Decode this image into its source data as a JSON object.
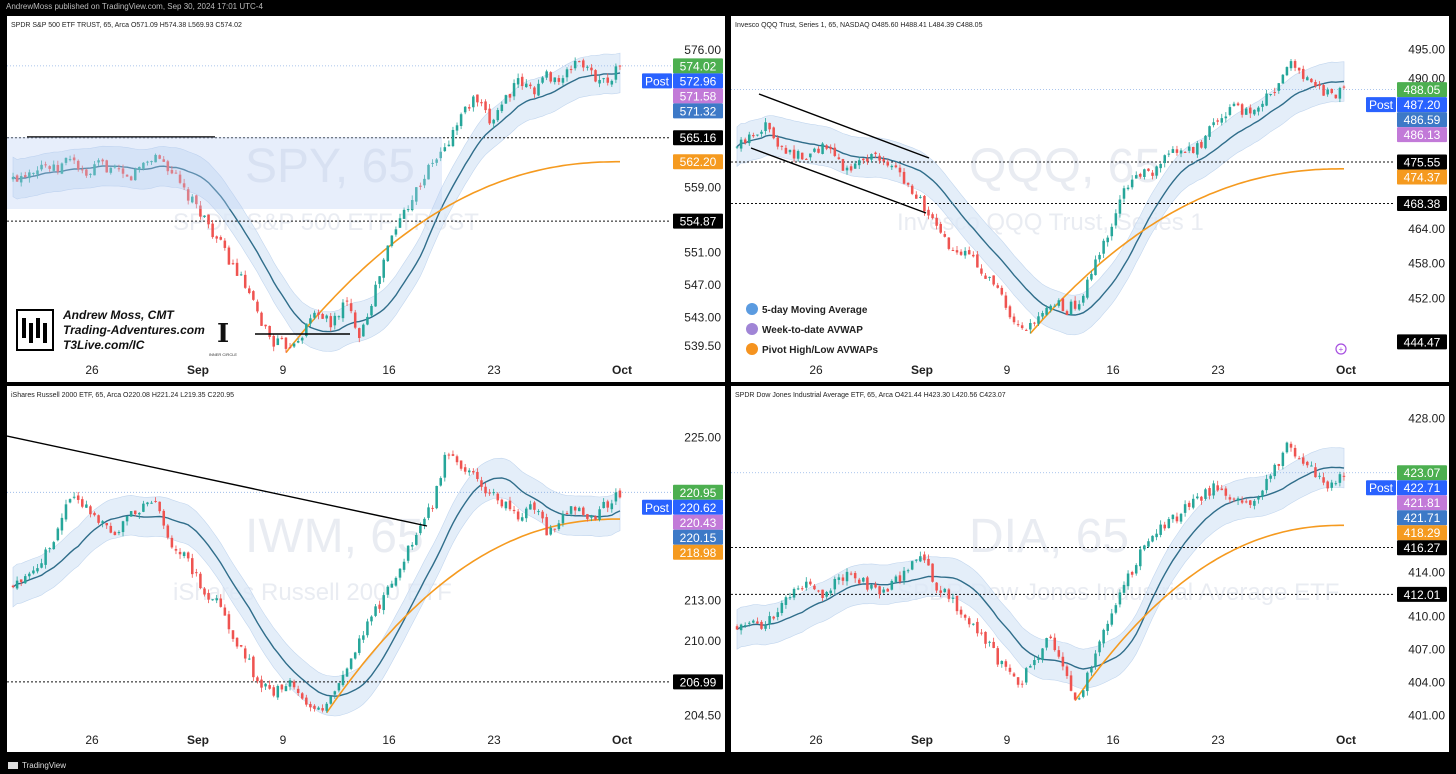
{
  "header_text": "AndrewMoss published on TradingView.com, Sep 30, 2024 17:01 UTC-4",
  "footer_brand": "TradingView",
  "colors": {
    "up": "#26a69a",
    "down": "#ef5350",
    "ma": "#2f6d8a",
    "avwap": "#f59a1f",
    "band": "#dbe8f7",
    "last": "#4caf50",
    "post": "#2962ff",
    "wtd": "#c27ad8",
    "five": "#3d79c7"
  },
  "legend": [
    {
      "label": "5-day Moving Average",
      "color": "#5b9be0"
    },
    {
      "label": "Week-to-date AVWAP",
      "color": "#a085d6"
    },
    {
      "label": "Pivot High/Low AVWAPs",
      "color": "#f5931f"
    }
  ],
  "signature": {
    "name": "Andrew Moss, CMT",
    "site1": "Trading-Adventures.com",
    "site2": "T3Live.com/IC",
    "badge": "INNER CIRCLE"
  },
  "chart_data": [
    {
      "type": "candlestick",
      "symbol": "SPY",
      "title": "SPDR S&P 500 ETF TRUST, 65, Arca",
      "ohlc_text": "O571.09  H574.38  L569.93  C574.02",
      "watermark_ticker": "SPY, 65",
      "watermark_name": "SPDR S&P 500 ETF TRUST",
      "ylim": [
        537.5,
        578.2
      ],
      "y_ticks": [
        "576.00",
        "559.00",
        "551.00",
        "547.00",
        "543.00",
        "539.50"
      ],
      "x_labels": [
        "26",
        "Sep",
        "9",
        "16",
        "23",
        "Oct"
      ],
      "price_labels": [
        {
          "text": "574.02",
          "value": 574.02,
          "kind": "last"
        },
        {
          "text": "572.96",
          "value": 572.96,
          "kind": "post",
          "tag": "Post"
        },
        {
          "text": "571.58",
          "value": 571.58,
          "kind": "wtd"
        },
        {
          "text": "571.32",
          "value": 571.32,
          "kind": "five"
        },
        {
          "text": "565.16",
          "value": 565.16,
          "kind": "level"
        },
        {
          "text": "562.20",
          "value": 562.2,
          "kind": "avwap"
        },
        {
          "text": "554.87",
          "value": 554.87,
          "kind": "level"
        }
      ],
      "levels": [
        565.16,
        554.87
      ],
      "path": [
        560,
        561,
        562,
        561,
        563,
        560,
        562,
        561,
        560,
        562,
        563,
        561,
        558,
        556,
        553,
        550,
        547,
        543,
        540,
        539.5,
        541,
        544,
        542,
        545,
        541,
        546,
        552,
        556,
        559,
        562,
        564,
        568,
        570,
        567,
        570,
        572,
        571,
        573,
        572,
        575,
        573,
        572,
        574
      ]
    },
    {
      "type": "candlestick",
      "symbol": "QQQ",
      "title": "Invesco QQQ Trust, Series 1, 65, NASDAQ",
      "ohlc_text": "O485.60  H488.41  L484.39  C488.05",
      "watermark_ticker": "QQQ, 65",
      "watermark_name": "Invesco QQQ Trust, Series 1",
      "ylim": [
        441,
        498
      ],
      "y_ticks": [
        "495.00",
        "490.00",
        "464.00",
        "458.00",
        "452.00"
      ],
      "x_labels": [
        "26",
        "Sep",
        "9",
        "16",
        "23",
        "Oct"
      ],
      "price_labels": [
        {
          "text": "488.05",
          "value": 488.05,
          "kind": "last"
        },
        {
          "text": "487.20",
          "value": 487.2,
          "kind": "post",
          "tag": "Post"
        },
        {
          "text": "486.59",
          "value": 486.59,
          "kind": "five"
        },
        {
          "text": "486.13",
          "value": 486.13,
          "kind": "wtd"
        },
        {
          "text": "475.55",
          "value": 475.55,
          "kind": "level"
        },
        {
          "text": "474.37",
          "value": 474.37,
          "kind": "avwap"
        },
        {
          "text": "468.38",
          "value": 468.38,
          "kind": "level"
        },
        {
          "text": "444.47",
          "value": 444.47,
          "kind": "level"
        }
      ],
      "levels": [
        475.55,
        468.38
      ],
      "path": [
        478,
        480,
        482,
        479,
        477,
        476,
        478,
        477,
        474,
        476,
        477,
        475,
        473,
        470,
        466,
        462,
        459,
        460,
        456,
        453,
        447,
        446,
        449,
        451,
        450,
        452,
        458,
        464,
        470,
        474,
        473,
        476,
        478,
        477,
        480,
        483,
        485,
        484,
        486,
        488,
        493,
        490,
        489,
        487,
        488
      ]
    },
    {
      "type": "candlestick",
      "symbol": "IWM",
      "title": "iShares Russell 2000 ETF, 65, Arca",
      "ohlc_text": "O220.08  H221.24  L219.35  C220.95",
      "watermark_ticker": "IWM, 65",
      "watermark_name": "iShares Russell 2000 ETF",
      "ylim": [
        203.3,
        227.6
      ],
      "y_ticks": [
        "225.00",
        "213.00",
        "210.00",
        "204.50"
      ],
      "x_labels": [
        "26",
        "Sep",
        "9",
        "16",
        "23",
        "Oct"
      ],
      "price_labels": [
        {
          "text": "220.95",
          "value": 220.95,
          "kind": "last"
        },
        {
          "text": "220.62",
          "value": 220.62,
          "kind": "post",
          "tag": "Post"
        },
        {
          "text": "220.43",
          "value": 220.43,
          "kind": "wtd"
        },
        {
          "text": "220.15",
          "value": 220.15,
          "kind": "five"
        },
        {
          "text": "218.98",
          "value": 218.98,
          "kind": "avwap"
        },
        {
          "text": "206.99",
          "value": 206.99,
          "kind": "level"
        }
      ],
      "levels": [
        206.99
      ],
      "path": [
        214,
        215,
        216,
        218,
        221,
        220,
        219,
        218,
        219,
        220,
        220,
        217,
        216,
        214,
        213,
        211,
        209,
        207,
        206,
        207,
        206,
        204.5,
        206,
        208,
        210,
        212,
        214,
        216,
        218,
        220,
        224,
        223,
        222,
        221,
        220,
        219,
        220,
        218,
        219,
        220,
        219,
        220,
        221
      ]
    },
    {
      "type": "candlestick",
      "symbol": "DIA",
      "title": "SPDR Dow Jones Industrial Average ETF, 65, Arca",
      "ohlc_text": "O421.44  H423.30  L420.56  C423.07",
      "watermark_ticker": "DIA, 65",
      "watermark_name": "SPDR Dow Jones Industrial Average ETF",
      "ylim": [
        399.5,
        429.5
      ],
      "y_ticks": [
        "428.00",
        "414.00",
        "410.00",
        "407.00",
        "404.00",
        "401.00"
      ],
      "x_labels": [
        "26",
        "Sep",
        "9",
        "16",
        "23",
        "Oct"
      ],
      "price_labels": [
        {
          "text": "423.07",
          "value": 423.07,
          "kind": "last"
        },
        {
          "text": "422.71",
          "value": 422.71,
          "kind": "post",
          "tag": "Post"
        },
        {
          "text": "421.81",
          "value": 421.81,
          "kind": "wtd"
        },
        {
          "text": "421.71",
          "value": 421.71,
          "kind": "five"
        },
        {
          "text": "418.29",
          "value": 418.29,
          "kind": "avwap"
        },
        {
          "text": "416.27",
          "value": 416.27,
          "kind": "level"
        },
        {
          "text": "412.01",
          "value": 412.01,
          "kind": "level"
        }
      ],
      "levels": [
        416.27,
        412.01
      ],
      "path": [
        409,
        410,
        409,
        411,
        412,
        413,
        412,
        413,
        414,
        413,
        412,
        413,
        414,
        416,
        413,
        412,
        410,
        409,
        407,
        405,
        404,
        406,
        408,
        406,
        402,
        405,
        409,
        412,
        414,
        417,
        418,
        419,
        420,
        421,
        422,
        421,
        420,
        421,
        423,
        426,
        424,
        423,
        422,
        423
      ]
    }
  ]
}
